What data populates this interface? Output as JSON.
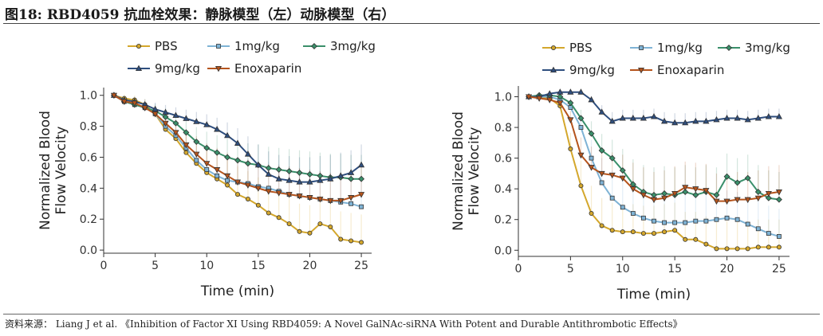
{
  "figure_title": "图18:  RBD4059 抗血栓效果：静脉模型（左）动脉模型（右）",
  "source_note": "资料来源：  Liang J et al. 《Inhibition of Factor XI Using RBD4059: A Novel GalNAc-siRNA With Potent and Durable Antithrombotic Effects》",
  "chart_data": [
    {
      "type": "line",
      "title": "",
      "xlabel": "Time (min)",
      "ylabel": "Normalized Blood Flow Velocity",
      "xlim": [
        0,
        26
      ],
      "ylim": [
        -0.02,
        1.05
      ],
      "xticks": [
        0,
        5,
        10,
        15,
        20,
        25
      ],
      "yticks": [
        0.0,
        0.2,
        0.4,
        0.6,
        0.8,
        1.0
      ],
      "xtick_labels": [
        "0",
        "5",
        "10",
        "15",
        "20",
        "25"
      ],
      "ytick_labels": [
        "0.0",
        "0.2",
        "0.4",
        "0.6",
        "0.8",
        "1.0"
      ],
      "grid": false,
      "legend_position": "top",
      "x": [
        1,
        2,
        3,
        4,
        5,
        6,
        7,
        8,
        9,
        10,
        11,
        12,
        13,
        14,
        15,
        16,
        17,
        18,
        19,
        20,
        21,
        22,
        23,
        24,
        25
      ],
      "series": [
        {
          "name": "PBS",
          "color": "#D4A72C",
          "marker": "circle",
          "values": [
            1.0,
            0.98,
            0.97,
            0.94,
            0.88,
            0.78,
            0.72,
            0.63,
            0.56,
            0.5,
            0.46,
            0.42,
            0.36,
            0.33,
            0.29,
            0.24,
            0.21,
            0.17,
            0.12,
            0.11,
            0.17,
            0.15,
            0.07,
            0.06,
            0.05
          ]
        },
        {
          "name": "1mg/kg",
          "color": "#7FB3D5",
          "marker": "square",
          "values": [
            1.0,
            0.96,
            0.94,
            0.92,
            0.88,
            0.8,
            0.74,
            0.66,
            0.58,
            0.52,
            0.48,
            0.45,
            0.44,
            0.43,
            0.41,
            0.4,
            0.38,
            0.36,
            0.35,
            0.34,
            0.33,
            0.32,
            0.31,
            0.3,
            0.28
          ]
        },
        {
          "name": "3mg/kg",
          "color": "#3A8F6A",
          "marker": "diamond",
          "values": [
            1.0,
            0.96,
            0.94,
            0.92,
            0.9,
            0.86,
            0.82,
            0.76,
            0.7,
            0.66,
            0.63,
            0.6,
            0.58,
            0.56,
            0.55,
            0.53,
            0.52,
            0.51,
            0.5,
            0.49,
            0.48,
            0.47,
            0.47,
            0.46,
            0.46
          ]
        },
        {
          "name": "9mg/kg",
          "color": "#2E4E7E",
          "marker": "triangle-up",
          "values": [
            1.0,
            0.97,
            0.96,
            0.94,
            0.91,
            0.89,
            0.87,
            0.85,
            0.83,
            0.81,
            0.78,
            0.74,
            0.69,
            0.62,
            0.55,
            0.49,
            0.46,
            0.45,
            0.44,
            0.44,
            0.45,
            0.46,
            0.48,
            0.5,
            0.55
          ]
        },
        {
          "name": "Enoxaparin",
          "color": "#B5541C",
          "marker": "triangle-down",
          "values": [
            1.0,
            0.96,
            0.95,
            0.92,
            0.88,
            0.82,
            0.76,
            0.68,
            0.62,
            0.56,
            0.52,
            0.48,
            0.44,
            0.42,
            0.4,
            0.38,
            0.37,
            0.36,
            0.35,
            0.34,
            0.33,
            0.32,
            0.32,
            0.34,
            0.36
          ]
        }
      ]
    },
    {
      "type": "line",
      "title": "",
      "xlabel": "Time (min)",
      "ylabel": "Normalized Blood Flow Velocity",
      "xlim": [
        0,
        26
      ],
      "ylim": [
        -0.04,
        1.07
      ],
      "xticks": [
        0,
        5,
        10,
        15,
        20,
        25
      ],
      "yticks": [
        0.0,
        0.2,
        0.4,
        0.6,
        0.8,
        1.0
      ],
      "xtick_labels": [
        "0",
        "5",
        "10",
        "15",
        "20",
        "25"
      ],
      "ytick_labels": [
        "0.0",
        "0.2",
        "0.4",
        "0.6",
        "0.8",
        "1.0"
      ],
      "grid": false,
      "legend_position": "top",
      "x": [
        1,
        2,
        3,
        4,
        5,
        6,
        7,
        8,
        9,
        10,
        11,
        12,
        13,
        14,
        15,
        16,
        17,
        18,
        19,
        20,
        21,
        22,
        23,
        24,
        25
      ],
      "series": [
        {
          "name": "PBS",
          "color": "#D4A72C",
          "marker": "circle",
          "values": [
            1.0,
            1.0,
            0.99,
            0.94,
            0.66,
            0.42,
            0.24,
            0.16,
            0.13,
            0.12,
            0.12,
            0.11,
            0.11,
            0.12,
            0.13,
            0.07,
            0.07,
            0.04,
            0.01,
            0.01,
            0.01,
            0.01,
            0.02,
            0.02,
            0.02
          ]
        },
        {
          "name": "1mg/kg",
          "color": "#7FB3D5",
          "marker": "square",
          "values": [
            1.0,
            1.0,
            1.0,
            0.98,
            0.93,
            0.8,
            0.6,
            0.44,
            0.34,
            0.28,
            0.24,
            0.21,
            0.19,
            0.18,
            0.18,
            0.18,
            0.19,
            0.19,
            0.2,
            0.21,
            0.2,
            0.17,
            0.14,
            0.11,
            0.09
          ]
        },
        {
          "name": "3mg/kg",
          "color": "#3A8F6A",
          "marker": "diamond",
          "values": [
            1.0,
            1.01,
            1.01,
            1.0,
            0.96,
            0.86,
            0.76,
            0.65,
            0.6,
            0.52,
            0.43,
            0.38,
            0.36,
            0.37,
            0.36,
            0.38,
            0.36,
            0.38,
            0.36,
            0.48,
            0.44,
            0.47,
            0.38,
            0.34,
            0.33
          ]
        },
        {
          "name": "9mg/kg",
          "color": "#2E4E7E",
          "marker": "triangle-up",
          "values": [
            1.0,
            1.0,
            1.02,
            1.03,
            1.03,
            1.03,
            0.98,
            0.9,
            0.84,
            0.86,
            0.86,
            0.86,
            0.87,
            0.84,
            0.83,
            0.83,
            0.84,
            0.84,
            0.85,
            0.86,
            0.86,
            0.85,
            0.86,
            0.87,
            0.87
          ]
        },
        {
          "name": "Enoxaparin",
          "color": "#B5541C",
          "marker": "triangle-down",
          "values": [
            1.0,
            0.99,
            0.98,
            0.96,
            0.85,
            0.62,
            0.54,
            0.5,
            0.49,
            0.47,
            0.4,
            0.36,
            0.33,
            0.34,
            0.37,
            0.41,
            0.4,
            0.39,
            0.32,
            0.32,
            0.33,
            0.33,
            0.34,
            0.37,
            0.38
          ]
        }
      ]
    }
  ]
}
